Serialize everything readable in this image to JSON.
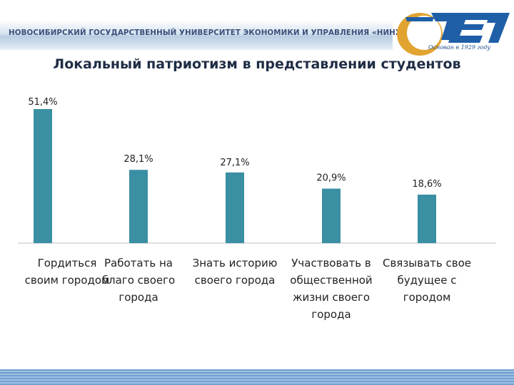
{
  "header": {
    "university_name": "НОВОСИБИРСКИЙ ГОСУДАРСТВЕННЫЙ УНИВЕРСИТЕТ ЭКОНОМИКИ И УПРАВЛЕНИЯ «НИНХ»",
    "logo_tagline": "Основан в 1929 году",
    "logo_icon": "nsuem-logo-icon"
  },
  "chart_data": {
    "type": "bar",
    "title": "Локальный патриотизм в представлении студентов",
    "categories": [
      [
        "Гордиться",
        "своим городом"
      ],
      [
        "Работать на",
        "благо своего",
        "города"
      ],
      [
        "Знать историю",
        "своего города"
      ],
      [
        "Участвовать в",
        "общественной",
        "жизни своего",
        "города"
      ],
      [
        "Связывать свое",
        "будущее с",
        "городом"
      ]
    ],
    "values": [
      51.4,
      28.1,
      27.1,
      20.9,
      18.6
    ],
    "value_labels": [
      "51,4%",
      "28,1%",
      "27,1%",
      "20,9%",
      "18,6%"
    ],
    "ylim": [
      0,
      55
    ],
    "grid": false,
    "bar_color": "#3a8fa3",
    "axis_color": "#bfbfbf"
  }
}
